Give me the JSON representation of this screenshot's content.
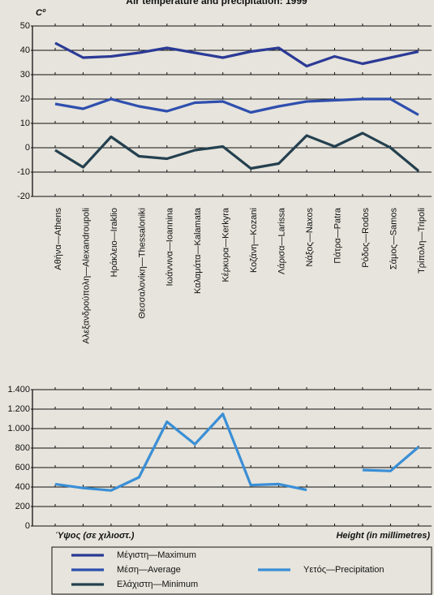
{
  "chart_data": [
    {
      "type": "line",
      "title": "Air temperature and precipitation: 1999",
      "ylabel": "Cº",
      "categories": [
        "Αθήνα—Athens",
        "Αλεξανδρούπολη—Alexandroupoli",
        "Ηράκλειο—Iraklio",
        "Θεσσαλονίκη—Thessaloniki",
        "Ιωάννινα—Ioannina",
        "Καλαμάτα—Kalamata",
        "Κέρκυρα—Kerkyra",
        "Κοζάνη—Kozani",
        "Λάρισα—Larissa",
        "Νάξος—Naxos",
        "Πάτρα—Patra",
        "Ρόδος—Rodos",
        "Σάμος—Samos",
        "Τρίπολη—Tripoli"
      ],
      "series": [
        {
          "name": "Μέγιστη—Maximum",
          "color": "#2b3a96",
          "values": [
            43,
            37,
            37.5,
            39,
            41,
            39,
            37,
            39.5,
            41,
            33.5,
            37.5,
            34.5,
            37,
            39.5
          ]
        },
        {
          "name": "Μέση—Average",
          "color": "#2f4fae",
          "values": [
            18,
            16,
            20,
            17,
            15,
            18.5,
            19,
            14.5,
            17,
            19,
            19.5,
            20,
            20,
            13.5
          ]
        },
        {
          "name": "Ελάχιστη—Minimum",
          "color": "#24404f",
          "values": [
            -1,
            -8,
            4.5,
            -3.5,
            -4.5,
            -1,
            0.5,
            -8.5,
            -6.5,
            5,
            0.5,
            6,
            0,
            -9.5
          ]
        }
      ],
      "ylim": [
        -20,
        50
      ],
      "yticks": [
        -20,
        -10,
        0,
        10,
        20,
        30,
        40,
        50
      ],
      "grid": true
    },
    {
      "type": "line",
      "annotations": [
        "Ύψος (σε χιλιοστ.)",
        "Height (in millimetres)"
      ],
      "series": [
        {
          "name": "Υετός—Precipitation",
          "color": "#3a8ed6",
          "values": [
            430,
            390,
            365,
            500,
            1070,
            840,
            1150,
            420,
            430,
            370,
            null,
            575,
            565,
            810
          ]
        }
      ],
      "ylim": [
        0,
        1400
      ],
      "yticks": [
        0,
        200,
        400,
        600,
        800,
        {
          "value": 1000,
          "label": "1.000"
        },
        {
          "value": 1200,
          "label": "1.200"
        },
        {
          "value": 1400,
          "label": "1.400"
        }
      ],
      "grid": true
    }
  ]
}
